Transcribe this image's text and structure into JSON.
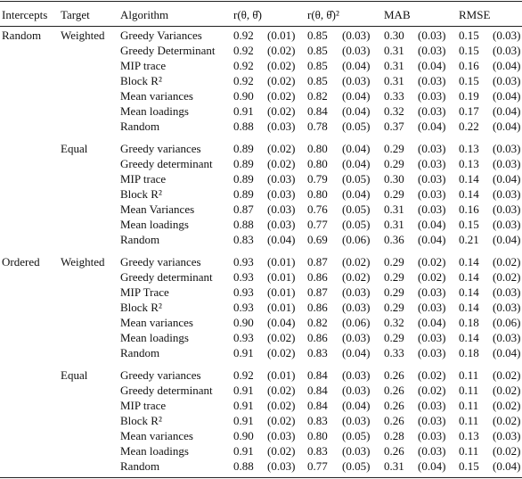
{
  "table": {
    "header": [
      "Intercepts",
      "Target",
      "Algorithm",
      "r(θ, θ̂)",
      "r(θ, θ̂)²",
      "MAB",
      "RMSE"
    ],
    "groups": [
      {
        "intercepts": "Random",
        "targets": [
          {
            "target": "Weighted",
            "rows": [
              {
                "algorithm": "Greedy Variances",
                "cells": [
                  "0.92",
                  "(0.01)",
                  "0.85",
                  "(0.03)",
                  "0.30",
                  "(0.03)",
                  "0.15",
                  "(0.03)"
                ]
              },
              {
                "algorithm": "Greedy Determinant",
                "cells": [
                  "0.92",
                  "(0.02)",
                  "0.85",
                  "(0.03)",
                  "0.31",
                  "(0.03)",
                  "0.15",
                  "(0.03)"
                ]
              },
              {
                "algorithm": "MIP trace",
                "cells": [
                  "0.92",
                  "(0.02)",
                  "0.85",
                  "(0.04)",
                  "0.31",
                  "(0.04)",
                  "0.16",
                  "(0.04)"
                ]
              },
              {
                "algorithm": "Block R²",
                "cells": [
                  "0.92",
                  "(0.02)",
                  "0.85",
                  "(0.03)",
                  "0.31",
                  "(0.03)",
                  "0.15",
                  "(0.03)"
                ]
              },
              {
                "algorithm": "Mean variances",
                "cells": [
                  "0.90",
                  "(0.02)",
                  "0.82",
                  "(0.04)",
                  "0.33",
                  "(0.03)",
                  "0.19",
                  "(0.04)"
                ]
              },
              {
                "algorithm": "Mean loadings",
                "cells": [
                  "0.91",
                  "(0.02)",
                  "0.84",
                  "(0.04)",
                  "0.32",
                  "(0.03)",
                  "0.17",
                  "(0.04)"
                ]
              },
              {
                "algorithm": "Random",
                "cells": [
                  "0.88",
                  "(0.03)",
                  "0.78",
                  "(0.05)",
                  "0.37",
                  "(0.04)",
                  "0.22",
                  "(0.04)"
                ]
              }
            ]
          },
          {
            "target": "Equal",
            "rows": [
              {
                "algorithm": "Greedy variances",
                "cells": [
                  "0.89",
                  "(0.02)",
                  "0.80",
                  "(0.04)",
                  "0.29",
                  "(0.03)",
                  "0.13",
                  "(0.03)"
                ]
              },
              {
                "algorithm": "Greedy determinant",
                "cells": [
                  "0.89",
                  "(0.02)",
                  "0.80",
                  "(0.04)",
                  "0.29",
                  "(0.03)",
                  "0.13",
                  "(0.03)"
                ]
              },
              {
                "algorithm": "MIP trace",
                "cells": [
                  "0.89",
                  "(0.03)",
                  "0.79",
                  "(0.05)",
                  "0.30",
                  "(0.03)",
                  "0.14",
                  "(0.04)"
                ]
              },
              {
                "algorithm": "Block R²",
                "cells": [
                  "0.89",
                  "(0.03)",
                  "0.80",
                  "(0.04)",
                  "0.29",
                  "(0.03)",
                  "0.14",
                  "(0.03)"
                ]
              },
              {
                "algorithm": "Mean Variances",
                "cells": [
                  "0.87",
                  "(0.03)",
                  "0.76",
                  "(0.05)",
                  "0.31",
                  "(0.03)",
                  "0.16",
                  "(0.03)"
                ]
              },
              {
                "algorithm": "Mean loadings",
                "cells": [
                  "0.88",
                  "(0.03)",
                  "0.77",
                  "(0.05)",
                  "0.31",
                  "(0.04)",
                  "0.15",
                  "(0.03)"
                ]
              },
              {
                "algorithm": "Random",
                "cells": [
                  "0.83",
                  "(0.04)",
                  "0.69",
                  "(0.06)",
                  "0.36",
                  "(0.04)",
                  "0.21",
                  "(0.04)"
                ]
              }
            ]
          }
        ]
      },
      {
        "intercepts": "Ordered",
        "targets": [
          {
            "target": "Weighted",
            "rows": [
              {
                "algorithm": "Greedy variances",
                "cells": [
                  "0.93",
                  "(0.01)",
                  "0.87",
                  "(0.02)",
                  "0.29",
                  "(0.02)",
                  "0.14",
                  "(0.02)"
                ]
              },
              {
                "algorithm": "Greedy determinant",
                "cells": [
                  "0.93",
                  "(0.01)",
                  "0.86",
                  "(0.02)",
                  "0.29",
                  "(0.02)",
                  "0.14",
                  "(0.02)"
                ]
              },
              {
                "algorithm": "MIP Trace",
                "cells": [
                  "0.93",
                  "(0.01)",
                  "0.87",
                  "(0.03)",
                  "0.29",
                  "(0.03)",
                  "0.14",
                  "(0.03)"
                ]
              },
              {
                "algorithm": "Block R²",
                "cells": [
                  "0.93",
                  "(0.01)",
                  "0.86",
                  "(0.03)",
                  "0.29",
                  "(0.03)",
                  "0.14",
                  "(0.03)"
                ]
              },
              {
                "algorithm": "Mean variances",
                "cells": [
                  "0.90",
                  "(0.04)",
                  "0.82",
                  "(0.06)",
                  "0.32",
                  "(0.04)",
                  "0.18",
                  "(0.06)"
                ]
              },
              {
                "algorithm": "Mean loadings",
                "cells": [
                  "0.93",
                  "(0.02)",
                  "0.86",
                  "(0.03)",
                  "0.29",
                  "(0.03)",
                  "0.14",
                  "(0.03)"
                ]
              },
              {
                "algorithm": "Random",
                "cells": [
                  "0.91",
                  "(0.02)",
                  "0.83",
                  "(0.04)",
                  "0.33",
                  "(0.03)",
                  "0.18",
                  "(0.04)"
                ]
              }
            ]
          },
          {
            "target": "Equal",
            "rows": [
              {
                "algorithm": "Greedy variances",
                "cells": [
                  "0.92",
                  "(0.01)",
                  "0.84",
                  "(0.03)",
                  "0.26",
                  "(0.02)",
                  "0.11",
                  "(0.02)"
                ]
              },
              {
                "algorithm": "Greedy determinant",
                "cells": [
                  "0.91",
                  "(0.02)",
                  "0.84",
                  "(0.03)",
                  "0.26",
                  "(0.02)",
                  "0.11",
                  "(0.02)"
                ]
              },
              {
                "algorithm": "MIP trace",
                "cells": [
                  "0.91",
                  "(0.02)",
                  "0.84",
                  "(0.04)",
                  "0.26",
                  "(0.03)",
                  "0.11",
                  "(0.02)"
                ]
              },
              {
                "algorithm": "Block R²",
                "cells": [
                  "0.91",
                  "(0.02)",
                  "0.83",
                  "(0.03)",
                  "0.26",
                  "(0.03)",
                  "0.11",
                  "(0.02)"
                ]
              },
              {
                "algorithm": "Mean variances",
                "cells": [
                  "0.90",
                  "(0.03)",
                  "0.80",
                  "(0.05)",
                  "0.28",
                  "(0.03)",
                  "0.13",
                  "(0.03)"
                ]
              },
              {
                "algorithm": "Mean loadings",
                "cells": [
                  "0.91",
                  "(0.02)",
                  "0.83",
                  "(0.03)",
                  "0.26",
                  "(0.03)",
                  "0.11",
                  "(0.02)"
                ]
              },
              {
                "algorithm": "Random",
                "cells": [
                  "0.88",
                  "(0.03)",
                  "0.77",
                  "(0.05)",
                  "0.31",
                  "(0.04)",
                  "0.15",
                  "(0.04)"
                ]
              }
            ]
          }
        ]
      }
    ]
  }
}
